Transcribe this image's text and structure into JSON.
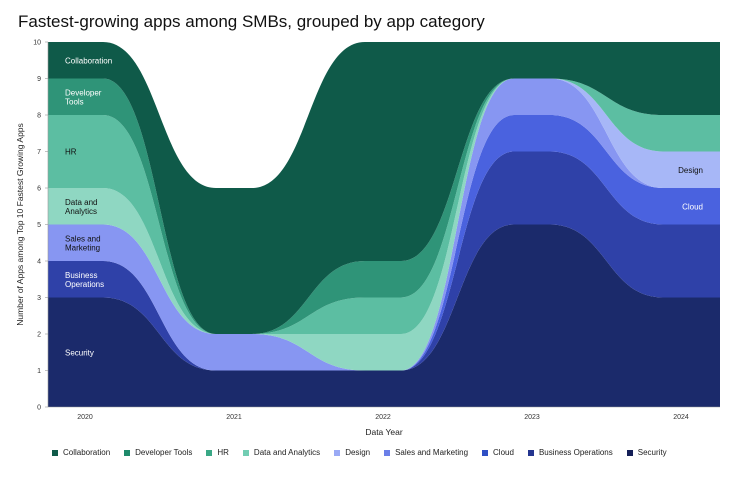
{
  "chart_data": {
    "type": "area",
    "title": "Fastest-growing apps among SMBs, grouped by app category",
    "xlabel": "Data Year",
    "ylabel": "Number of Apps among Top 10 Fastest Growing Apps",
    "categories": [
      "2020",
      "2021",
      "2022",
      "2023",
      "2024"
    ],
    "ylim": [
      0,
      10
    ],
    "yticks": [
      "0",
      "1",
      "2",
      "3",
      "4",
      "5",
      "6",
      "7",
      "8",
      "9",
      "10"
    ],
    "stacked": true,
    "grid": false,
    "legend_position": "bottom",
    "series": [
      {
        "name": "Security",
        "values": [
          3,
          1,
          1,
          5,
          3
        ],
        "color": "#1b2a6b"
      },
      {
        "name": "Business Operations",
        "values": [
          1,
          0,
          0,
          2,
          2
        ],
        "color": "#2f41a8"
      },
      {
        "name": "Cloud",
        "values": [
          0,
          0,
          0,
          1,
          1
        ],
        "color": "#4a62df"
      },
      {
        "name": "Sales and Marketing",
        "values": [
          1,
          1,
          0,
          1,
          0
        ],
        "color": "#8796f2"
      },
      {
        "name": "Design",
        "values": [
          0,
          0,
          0,
          0,
          1
        ],
        "color": "#a7b7f7"
      },
      {
        "name": "Data and Analytics",
        "values": [
          1,
          0,
          1,
          0,
          0
        ],
        "color": "#8fd7c2"
      },
      {
        "name": "HR",
        "values": [
          2,
          0,
          1,
          0,
          1
        ],
        "color": "#5cbea2"
      },
      {
        "name": "Developer Tools",
        "values": [
          1,
          0,
          1,
          0,
          0
        ],
        "color": "#2f9478"
      },
      {
        "name": "Collaboration",
        "values": [
          1,
          4,
          6,
          1,
          2
        ],
        "color": "#0f5a49"
      }
    ],
    "area_labels": [
      {
        "series": "Collaboration",
        "text": "Collaboration",
        "color": "#ffffff"
      },
      {
        "series": "Developer Tools",
        "text": "Developer\nTools",
        "color": "#ffffff"
      },
      {
        "series": "HR",
        "text": "HR",
        "color": "#111111"
      },
      {
        "series": "Data and Analytics",
        "text": "Data and\nAnalytics",
        "color": "#111111"
      },
      {
        "series": "Sales and Marketing",
        "text": "Sales and\nMarketing",
        "color": "#111111"
      },
      {
        "series": "Business Operations",
        "text": "Business\nOperations",
        "color": "#ffffff"
      },
      {
        "series": "Security",
        "text": "Security",
        "color": "#ffffff"
      },
      {
        "series": "Design",
        "text": "Design",
        "color": "#111111"
      },
      {
        "series": "Cloud",
        "text": "Cloud",
        "color": "#ffffff"
      }
    ],
    "legend": [
      {
        "name": "Collaboration",
        "color": "#0f5a49"
      },
      {
        "name": "Developer Tools",
        "color": "#1f8a6b"
      },
      {
        "name": "HR",
        "color": "#3aa886"
      },
      {
        "name": "Data and Analytics",
        "color": "#72cdb3"
      },
      {
        "name": "Design",
        "color": "#9aaaf5"
      },
      {
        "name": "Sales and Marketing",
        "color": "#6b7fe8"
      },
      {
        "name": "Cloud",
        "color": "#2f4fc4"
      },
      {
        "name": "Business Operations",
        "color": "#24358f"
      },
      {
        "name": "Security",
        "color": "#141f57"
      }
    ]
  }
}
